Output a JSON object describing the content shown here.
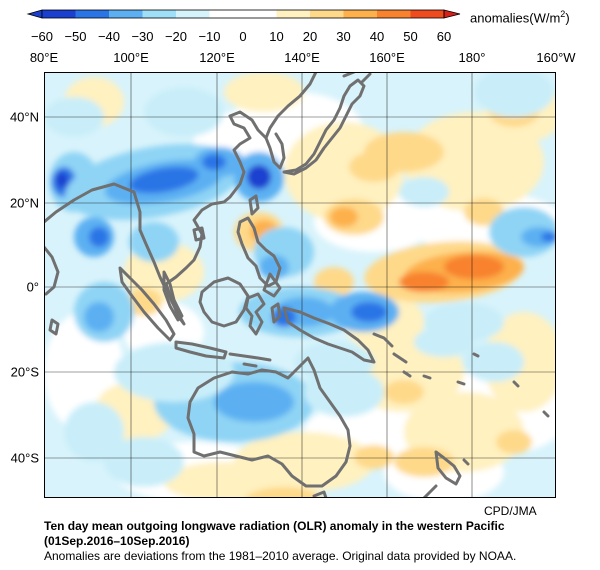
{
  "colorbar": {
    "units_text": "anomalies(W/m",
    "units_sup": "2",
    "units_close": ")",
    "tick_labels": [
      "−60",
      "−50",
      "−40",
      "−30",
      "−20",
      "−10",
      "0",
      "10",
      "20",
      "30",
      "40",
      "50",
      "60"
    ],
    "colors": [
      "#1b3fcf",
      "#2b74e6",
      "#5cb0f2",
      "#9fdff8",
      "#d6f3fb",
      "#ffffff",
      "#ffffff",
      "#fff1c0",
      "#fed98a",
      "#fdb04b",
      "#f8822e",
      "#ee4c1e",
      "#d6201a"
    ]
  },
  "axes": {
    "lon_labels": [
      "80°E",
      "100°E",
      "120°E",
      "140°E",
      "160°E",
      "180°",
      "160°W"
    ],
    "lat_labels": [
      "40°N",
      "20°N",
      "0°",
      "20°S",
      "40°S"
    ]
  },
  "map_colors": {
    "coast": "#707070",
    "grid": "#000000",
    "frame": "#000000"
  },
  "credit": "CPD/JMA",
  "title_line1": "Ten day mean outgoing longwave radiation (OLR) anomaly in the western Pacific",
  "title_line2": "(01Sep.2016–10Sep.2016)",
  "note": "Anomalies are deviations from the 1981–2010 average. Original data provided by NOAA."
}
